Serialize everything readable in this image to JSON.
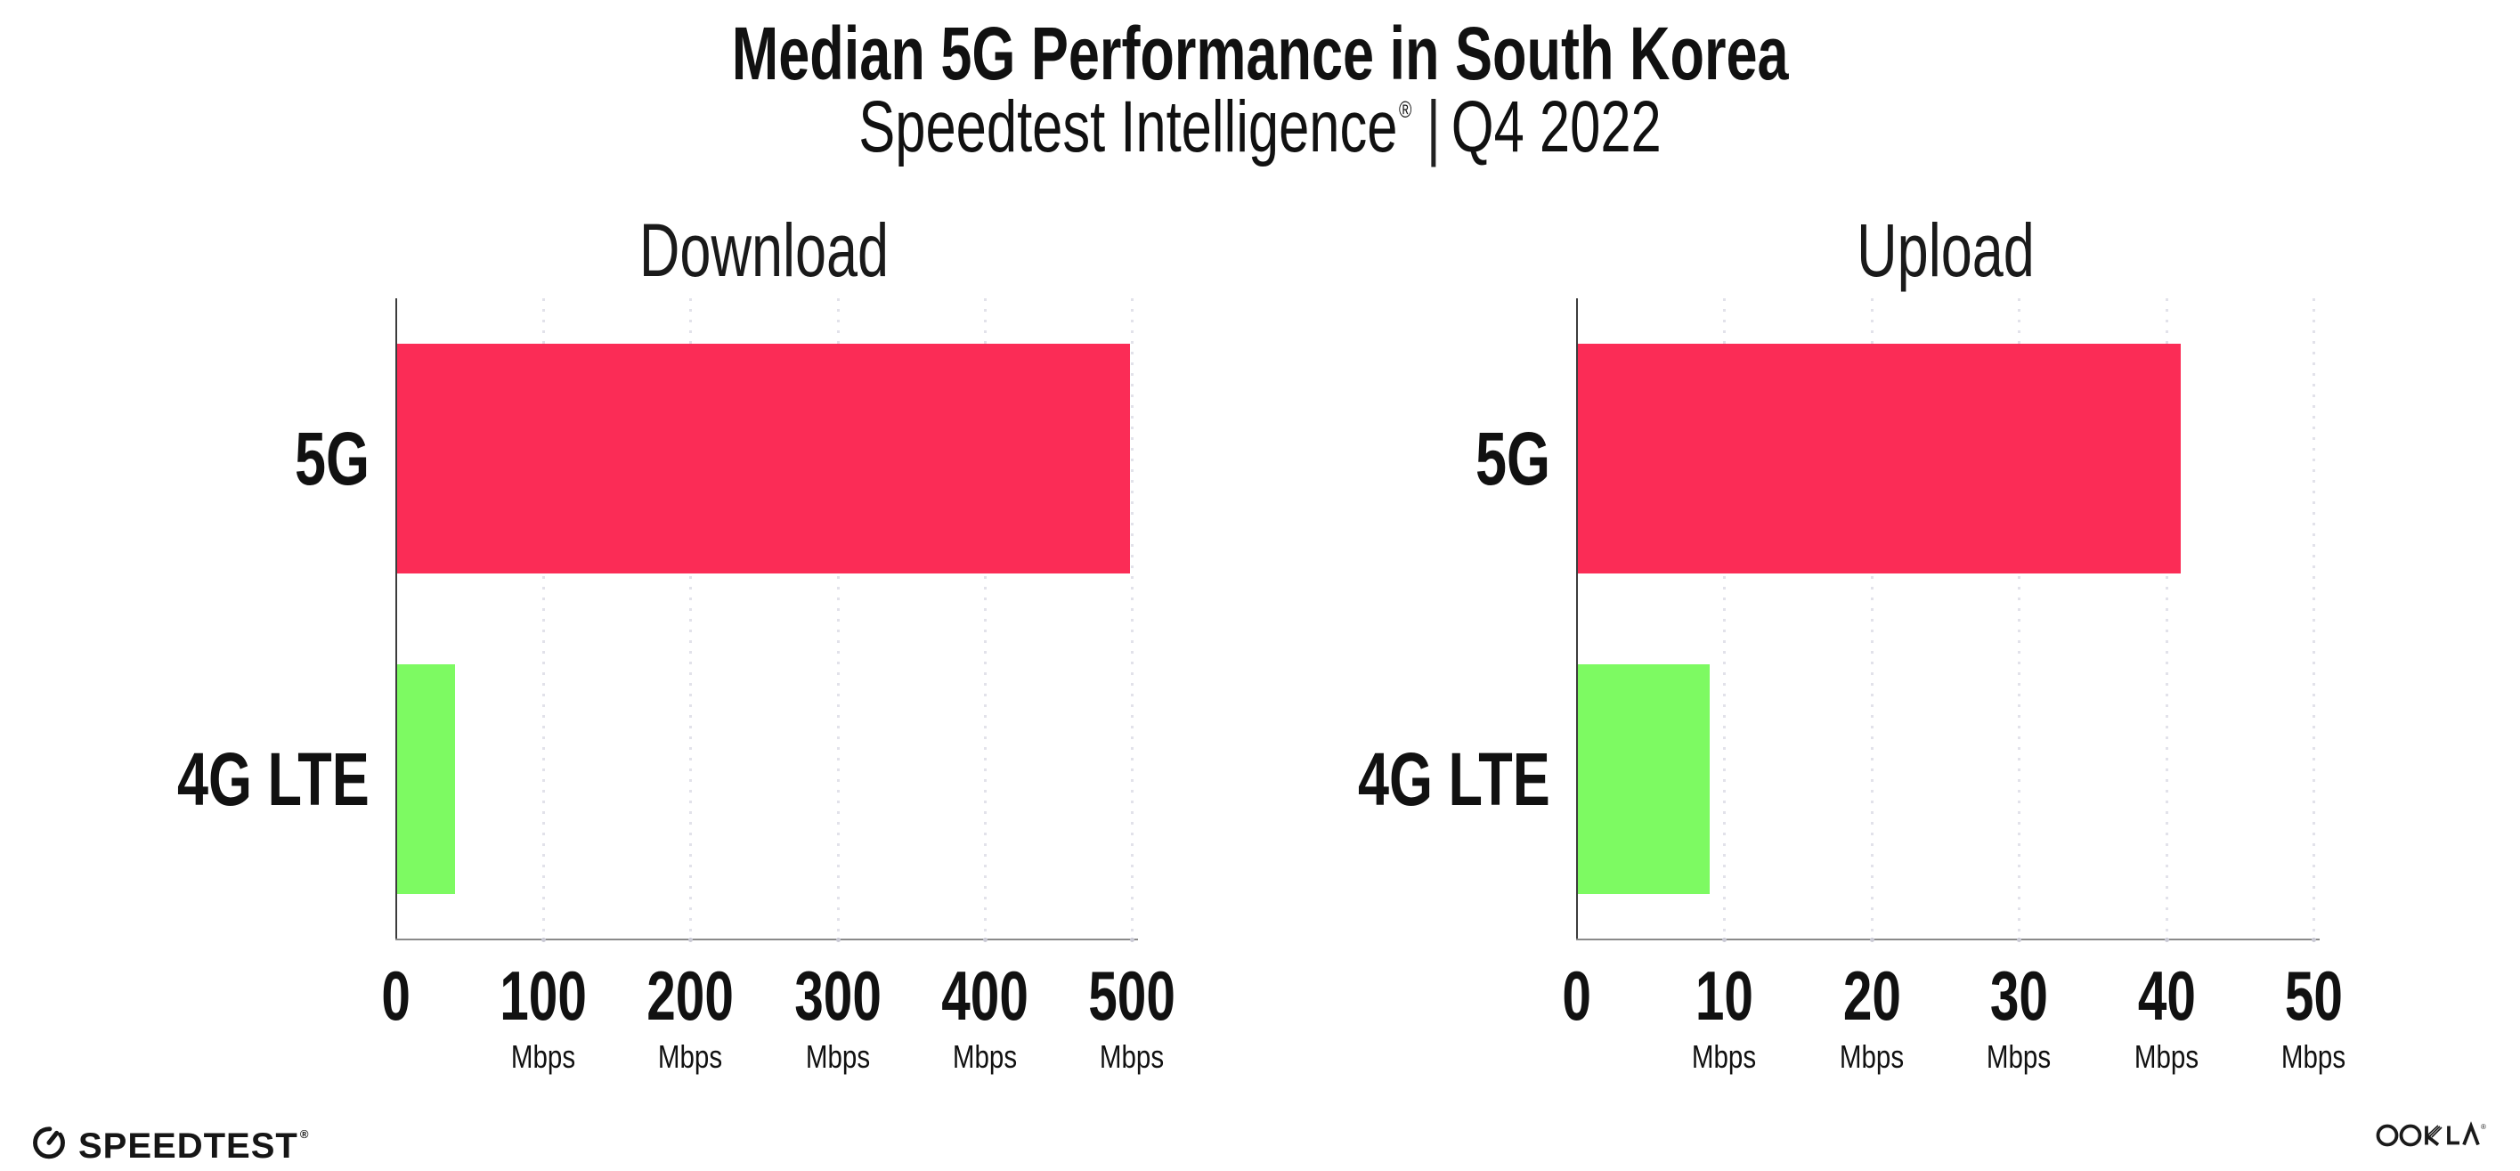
{
  "header": {
    "title": "Median 5G Performance in South Korea",
    "subtitle_product": "Speedtest Intelligence",
    "subtitle_trademark": "®",
    "subtitle_separator": "|",
    "subtitle_period": "Q4 2022"
  },
  "chart_data": [
    {
      "type": "bar",
      "orientation": "horizontal",
      "title": "Download",
      "categories": [
        "5G",
        "4G LTE"
      ],
      "values": [
        499,
        40
      ],
      "unit": "Mbps",
      "xlim": [
        0,
        500
      ],
      "xticks": [
        0,
        100,
        200,
        300,
        400,
        500
      ],
      "grid": "vertical-dotted",
      "legend": "none",
      "bar_colors": [
        "#FB2C56",
        "#7DFA62"
      ]
    },
    {
      "type": "bar",
      "orientation": "horizontal",
      "title": "Upload",
      "categories": [
        "5G",
        "4G LTE"
      ],
      "values": [
        41,
        9
      ],
      "unit": "Mbps",
      "xlim": [
        0,
        50
      ],
      "xticks": [
        0,
        10,
        20,
        30,
        40,
        50
      ],
      "grid": "vertical-dotted",
      "legend": "none",
      "bar_colors": [
        "#FB2C56",
        "#7DFA62"
      ]
    }
  ],
  "footer": {
    "speedtest_wordmark": "SPEEDTEST",
    "speedtest_trademark": "®",
    "ookla_wordmark": "OOKLA"
  },
  "colors": {
    "bar_5g": "#FB2C56",
    "bar_4g_lte": "#7DFA62",
    "text": "#111111",
    "gridline": "#E2E2EA",
    "x_axis": "#8A8A8A",
    "y_axis": "#3C3C3C",
    "background": "#FFFFFF"
  }
}
